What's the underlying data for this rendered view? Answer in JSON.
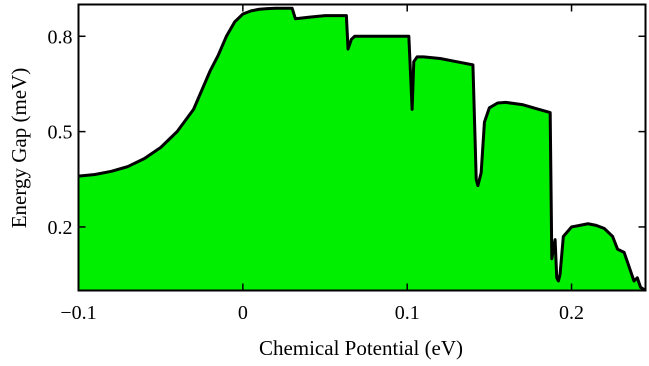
{
  "chart_data": {
    "type": "area",
    "title": "",
    "xlabel": "Chemical Potential (eV)",
    "ylabel": "Energy Gap (meV)",
    "xlim": [
      -0.1,
      0.245
    ],
    "ylim": [
      0.0,
      0.9
    ],
    "x_ticks": [
      -0.1,
      0.0,
      0.1,
      0.2
    ],
    "x_tick_labels": [
      "−0.1",
      "0",
      "0.1",
      "0.2"
    ],
    "y_ticks": [
      0.2,
      0.5,
      0.8
    ],
    "y_tick_labels": [
      "0.2",
      "0.5",
      "0.8"
    ],
    "fill_color": "#00ee00",
    "line_color": "#000000",
    "grid": false,
    "series": [
      {
        "x": [
          -0.1,
          -0.09,
          -0.08,
          -0.07,
          -0.06,
          -0.05,
          -0.04,
          -0.03,
          -0.02,
          -0.015,
          -0.01,
          -0.005,
          0.0,
          0.005,
          0.01,
          0.015,
          0.02,
          0.025,
          0.03,
          0.032,
          0.04,
          0.05,
          0.063,
          0.064,
          0.066,
          0.068,
          0.08,
          0.09,
          0.101,
          0.103,
          0.104,
          0.106,
          0.11,
          0.12,
          0.13,
          0.14,
          0.142,
          0.143,
          0.145,
          0.147,
          0.15,
          0.155,
          0.16,
          0.17,
          0.18,
          0.187,
          0.188,
          0.19,
          0.191,
          0.192,
          0.193,
          0.195,
          0.2,
          0.205,
          0.21,
          0.215,
          0.22,
          0.225,
          0.228,
          0.232,
          0.236,
          0.238,
          0.24,
          0.242,
          0.245
        ],
        "values": [
          0.36,
          0.365,
          0.375,
          0.39,
          0.415,
          0.45,
          0.5,
          0.57,
          0.69,
          0.74,
          0.8,
          0.845,
          0.87,
          0.88,
          0.885,
          0.887,
          0.888,
          0.888,
          0.888,
          0.855,
          0.86,
          0.865,
          0.865,
          0.76,
          0.79,
          0.8,
          0.8,
          0.8,
          0.8,
          0.57,
          0.72,
          0.735,
          0.735,
          0.73,
          0.72,
          0.71,
          0.35,
          0.33,
          0.37,
          0.53,
          0.575,
          0.59,
          0.592,
          0.585,
          0.57,
          0.56,
          0.1,
          0.16,
          0.04,
          0.03,
          0.05,
          0.17,
          0.2,
          0.205,
          0.21,
          0.205,
          0.195,
          0.17,
          0.13,
          0.12,
          0.06,
          0.03,
          0.04,
          0.01,
          0.0
        ]
      }
    ]
  }
}
